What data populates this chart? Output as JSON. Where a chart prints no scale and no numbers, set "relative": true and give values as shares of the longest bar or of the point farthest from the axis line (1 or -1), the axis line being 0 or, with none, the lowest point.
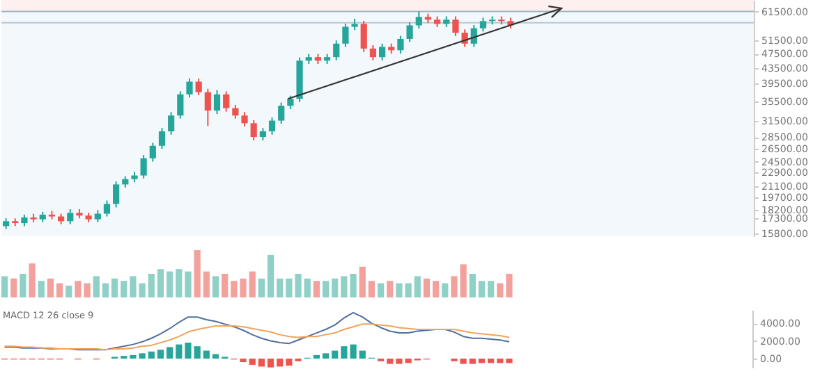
{
  "chart_data": [
    {
      "type": "candlestick",
      "tick_labels": "y",
      "log": "y",
      "ylim": [
        15500,
        66000
      ],
      "yticks": [
        {
          "value": 61500,
          "label": "61500.00"
        },
        {
          "value": 51500,
          "label": "51500.00"
        },
        {
          "value": 47500,
          "label": "47500.00"
        },
        {
          "value": 43500,
          "label": "43500.00"
        },
        {
          "value": 39500,
          "label": "39500.00"
        },
        {
          "value": 35500,
          "label": "35500.00"
        },
        {
          "value": 31500,
          "label": "31500.00"
        },
        {
          "value": 28500,
          "label": "28500.00"
        },
        {
          "value": 26500,
          "label": "26500.00"
        },
        {
          "value": 24500,
          "label": "24500.00"
        },
        {
          "value": 22900,
          "label": "22900.00"
        },
        {
          "value": 21100,
          "label": "21100.00"
        },
        {
          "value": 19700,
          "label": "19700.00"
        },
        {
          "value": 18200,
          "label": "18200.00"
        },
        {
          "value": 17300,
          "label": "17300.00"
        },
        {
          "value": 15800,
          "label": "15800.00"
        }
      ],
      "categories": [
        null,
        null,
        null,
        null,
        null,
        null,
        null,
        null,
        null,
        null,
        null,
        null,
        null,
        null,
        null,
        null,
        null,
        null,
        null,
        null,
        null,
        null,
        null,
        null,
        null,
        null,
        null,
        null,
        null,
        null,
        null,
        null,
        null,
        null,
        null,
        null,
        null,
        null,
        null,
        null,
        null,
        null,
        null,
        null,
        null,
        null,
        null,
        null,
        null,
        null,
        null,
        null,
        null,
        null,
        null,
        null,
        null,
        null,
        null,
        null,
        null,
        null,
        null,
        null,
        null,
        null,
        null,
        null,
        null,
        null,
        null,
        null,
        null,
        null,
        null,
        null,
        null,
        null,
        null,
        null,
        null,
        null
      ],
      "ohlc": [
        [
          16500,
          17300,
          16200,
          17000
        ],
        [
          17000,
          17300,
          16500,
          16800
        ],
        [
          16800,
          17700,
          16500,
          17400
        ],
        [
          17400,
          17800,
          16900,
          17200
        ],
        [
          17200,
          18000,
          16900,
          17700
        ],
        [
          17700,
          18100,
          17200,
          17500
        ],
        [
          17500,
          17800,
          16700,
          17000
        ],
        [
          17000,
          18300,
          16700,
          17900
        ],
        [
          17900,
          18300,
          17300,
          17600
        ],
        [
          17600,
          17900,
          16900,
          17200
        ],
        [
          17200,
          18200,
          16900,
          17800
        ],
        [
          17800,
          19300,
          17500,
          18900
        ],
        [
          18900,
          21700,
          18500,
          21300
        ],
        [
          21300,
          22400,
          20900,
          22000
        ],
        [
          22000,
          23000,
          21600,
          22500
        ],
        [
          22500,
          25500,
          22100,
          25000
        ],
        [
          25000,
          27500,
          24500,
          27000
        ],
        [
          27000,
          30100,
          26500,
          29500
        ],
        [
          29500,
          33200,
          28900,
          32500
        ],
        [
          32500,
          37700,
          31900,
          37000
        ],
        [
          37000,
          40800,
          36300,
          40000
        ],
        [
          40000,
          40800,
          36800,
          37500
        ],
        [
          37500,
          38300,
          30500,
          33500
        ],
        [
          33500,
          38000,
          32800,
          37000
        ],
        [
          37000,
          37700,
          33300,
          34000
        ],
        [
          34000,
          34700,
          31900,
          32500
        ],
        [
          32500,
          33200,
          30400,
          31000
        ],
        [
          31000,
          31600,
          27900,
          28500
        ],
        [
          28500,
          30100,
          27900,
          29500
        ],
        [
          29500,
          32100,
          28900,
          31500
        ],
        [
          31500,
          35200,
          30900,
          34500
        ],
        [
          34500,
          36700,
          33800,
          36000
        ],
        [
          36000,
          46400,
          35300,
          45500
        ],
        [
          45500,
          47400,
          44600,
          46500
        ],
        [
          46500,
          47400,
          44600,
          45500
        ],
        [
          45500,
          47400,
          44600,
          46500
        ],
        [
          46500,
          51500,
          45600,
          50500
        ],
        [
          50500,
          57100,
          49500,
          56000
        ],
        [
          56000,
          58800,
          54900,
          57000
        ],
        [
          57000,
          58100,
          48000,
          49000
        ],
        [
          49000,
          50000,
          45600,
          46500
        ],
        [
          46500,
          50500,
          45600,
          49500
        ],
        [
          49500,
          50500,
          47500,
          48500
        ],
        [
          48500,
          53000,
          47500,
          52000
        ],
        [
          52000,
          57600,
          51000,
          56500
        ],
        [
          56500,
          61500,
          55400,
          59500
        ],
        [
          59500,
          60700,
          57300,
          58500
        ],
        [
          58500,
          59700,
          55900,
          57000
        ],
        [
          57000,
          59700,
          55900,
          58500
        ],
        [
          58500,
          59700,
          52900,
          54000
        ],
        [
          54000,
          55100,
          49500,
          50500
        ],
        [
          50500,
          56600,
          49500,
          55500
        ],
        [
          55500,
          59200,
          54400,
          58000
        ],
        [
          58000,
          59700,
          56800,
          58500
        ],
        [
          58500,
          59700,
          56800,
          58000
        ],
        [
          58000,
          59200,
          55400,
          56500
        ],
        null,
        null,
        null,
        null,
        null,
        null,
        null,
        null,
        null,
        null,
        null,
        null,
        null,
        null,
        null,
        null,
        null,
        null,
        null,
        null,
        null,
        null,
        null,
        null,
        null,
        null
      ],
      "colors": [
        "#26a69a",
        "#ef5350",
        "#26a69a",
        "#ef5350",
        "#26a69a",
        "#ef5350",
        "#ef5350",
        "#26a69a",
        "#ef5350",
        "#ef5350",
        "#26a69a",
        "#26a69a",
        "#26a69a",
        "#26a69a",
        "#26a69a",
        "#26a69a",
        "#26a69a",
        "#26a69a",
        "#26a69a",
        "#26a69a",
        "#26a69a",
        "#ef5350",
        "#ef5350",
        "#26a69a",
        "#ef5350",
        "#ef5350",
        "#ef5350",
        "#ef5350",
        "#26a69a",
        "#26a69a",
        "#26a69a",
        "#26a69a",
        "#26a69a",
        "#26a69a",
        "#ef5350",
        "#26a69a",
        "#26a69a",
        "#26a69a",
        "#26a69a",
        "#ef5350",
        "#ef5350",
        "#26a69a",
        "#ef5350",
        "#26a69a",
        "#26a69a",
        "#26a69a",
        "#ef5350",
        "#ef5350",
        "#26a69a",
        "#ef5350",
        "#ef5350",
        "#26a69a",
        "#26a69a",
        "#26a69a",
        "#ef5350",
        "#ef5350",
        null,
        null,
        null,
        null,
        null,
        null,
        null,
        null,
        null,
        null,
        null,
        null,
        null,
        null,
        null,
        null,
        null,
        null,
        null,
        null,
        null,
        null,
        null,
        null,
        null,
        null
      ],
      "ref_lines": [
        {
          "axis": "y",
          "value": 61500,
          "color": "#9fb4c4"
        },
        {
          "axis": "y",
          "value": 57400,
          "color": "#b8c8d4"
        }
      ],
      "bands": [
        {
          "axis": "y",
          "from": 61500,
          "to": 66000,
          "color": "#fdf0ef"
        },
        {
          "axis": "y",
          "from": 15500,
          "to": 61500,
          "color": "#f2f8fc"
        }
      ]
    },
    {
      "type": "bar",
      "relative": true,
      "categories": [
        null,
        null,
        null,
        null,
        null,
        null,
        null,
        null,
        null,
        null,
        null,
        null,
        null,
        null,
        null,
        null,
        null,
        null,
        null,
        null,
        null,
        null,
        null,
        null,
        null,
        null,
        null,
        null,
        null,
        null,
        null,
        null,
        null,
        null,
        null,
        null,
        null,
        null,
        null,
        null,
        null,
        null,
        null,
        null,
        null,
        null,
        null,
        null,
        null,
        null,
        null,
        null,
        null,
        null,
        null,
        null,
        null,
        null,
        null,
        null,
        null,
        null,
        null,
        null,
        null,
        null,
        null,
        null,
        null,
        null,
        null,
        null,
        null,
        null,
        null,
        null,
        null,
        null,
        null,
        null,
        null,
        null
      ],
      "values": [
        0.45,
        0.4,
        0.5,
        0.72,
        0.35,
        0.4,
        0.3,
        0.25,
        0.35,
        0.3,
        0.45,
        0.3,
        0.4,
        0.35,
        0.45,
        0.3,
        0.5,
        0.6,
        0.55,
        0.6,
        0.55,
        1.0,
        0.55,
        0.45,
        0.5,
        0.35,
        0.4,
        0.55,
        0.4,
        0.9,
        0.4,
        0.4,
        0.5,
        0.4,
        0.35,
        0.35,
        0.4,
        0.45,
        0.5,
        0.65,
        0.35,
        0.3,
        0.35,
        0.3,
        0.3,
        0.45,
        0.4,
        0.35,
        0.3,
        0.45,
        0.7,
        0.5,
        0.35,
        0.35,
        0.3,
        0.5,
        null,
        null,
        null,
        null,
        null,
        null,
        null,
        null,
        null,
        null,
        null,
        null,
        null,
        null,
        null,
        null,
        null,
        null,
        null,
        null,
        null,
        null,
        null,
        null,
        null,
        null
      ],
      "colors": [
        "#8fd0c7",
        "#f2a19d",
        "#8fd0c7",
        "#f2a19d",
        "#8fd0c7",
        "#f2a19d",
        "#f2a19d",
        "#8fd0c7",
        "#f2a19d",
        "#f2a19d",
        "#8fd0c7",
        "#8fd0c7",
        "#8fd0c7",
        "#8fd0c7",
        "#8fd0c7",
        "#8fd0c7",
        "#8fd0c7",
        "#8fd0c7",
        "#8fd0c7",
        "#8fd0c7",
        "#8fd0c7",
        "#f2a19d",
        "#f2a19d",
        "#8fd0c7",
        "#f2a19d",
        "#f2a19d",
        "#f2a19d",
        "#f2a19d",
        "#8fd0c7",
        "#8fd0c7",
        "#8fd0c7",
        "#8fd0c7",
        "#8fd0c7",
        "#8fd0c7",
        "#f2a19d",
        "#8fd0c7",
        "#8fd0c7",
        "#8fd0c7",
        "#8fd0c7",
        "#f2a19d",
        "#f2a19d",
        "#8fd0c7",
        "#f2a19d",
        "#8fd0c7",
        "#8fd0c7",
        "#8fd0c7",
        "#f2a19d",
        "#f2a19d",
        "#8fd0c7",
        "#f2a19d",
        "#f2a19d",
        "#8fd0c7",
        "#8fd0c7",
        "#8fd0c7",
        "#f2a19d",
        "#f2a19d",
        null,
        null,
        null,
        null,
        null,
        null,
        null,
        null,
        null,
        null,
        null,
        null,
        null,
        null,
        null,
        null,
        null,
        null,
        null,
        null,
        null,
        null,
        null,
        null,
        null,
        null
      ]
    },
    {
      "type": "line",
      "tick_labels": "y",
      "ylim": [
        -1100,
        5500
      ],
      "yticks": [
        {
          "value": 0,
          "label": "0.00"
        },
        {
          "value": 2000,
          "label": "2000.00"
        },
        {
          "value": 4000,
          "label": "4000.00"
        }
      ],
      "annotations": [
        "MACD 12 26 close 9"
      ],
      "categories": [
        null,
        null,
        null,
        null,
        null,
        null,
        null,
        null,
        null,
        null,
        null,
        null,
        null,
        null,
        null,
        null,
        null,
        null,
        null,
        null,
        null,
        null,
        null,
        null,
        null,
        null,
        null,
        null,
        null,
        null,
        null,
        null,
        null,
        null,
        null,
        null,
        null,
        null,
        null,
        null,
        null,
        null,
        null,
        null,
        null,
        null,
        null,
        null,
        null,
        null,
        null,
        null,
        null,
        null,
        null,
        null,
        null,
        null,
        null,
        null,
        null,
        null,
        null,
        null,
        null,
        null,
        null,
        null,
        null,
        null,
        null,
        null,
        null,
        null,
        null,
        null,
        null,
        null,
        null,
        null,
        null,
        null
      ],
      "series": [
        {
          "type": "bar",
          "values": [
            -100,
            -100,
            -100,
            -100,
            -100,
            -100,
            -100,
            0,
            -100,
            0,
            -100,
            0,
            200,
            300,
            400,
            600,
            800,
            1000,
            1300,
            1600,
            1800,
            1400,
            900,
            500,
            200,
            -100,
            -400,
            -700,
            -900,
            -1000,
            -900,
            -800,
            -300,
            100,
            400,
            600,
            900,
            1400,
            1600,
            900,
            100,
            -300,
            -600,
            -600,
            -500,
            -200,
            -100,
            0,
            0,
            -300,
            -600,
            -600,
            -500,
            -500,
            -500,
            -500,
            null,
            null,
            null,
            null,
            null,
            null,
            null,
            null,
            null,
            null,
            null,
            null,
            null,
            null,
            null,
            null,
            null,
            null,
            null,
            null,
            null,
            null,
            null,
            null,
            null,
            null
          ],
          "colors": [
            "#ef5350",
            "#ef5350",
            "#ef5350",
            "#ef5350",
            "#ef5350",
            "#ef5350",
            "#ef5350",
            "#ef5350",
            "#ef5350",
            "#ef5350",
            "#ef5350",
            "#26a69a",
            "#26a69a",
            "#26a69a",
            "#26a69a",
            "#26a69a",
            "#26a69a",
            "#26a69a",
            "#26a69a",
            "#26a69a",
            "#26a69a",
            "#26a69a",
            "#26a69a",
            "#26a69a",
            "#26a69a",
            "#ef5350",
            "#ef5350",
            "#ef5350",
            "#ef5350",
            "#ef5350",
            "#ef5350",
            "#ef5350",
            "#ef5350",
            "#26a69a",
            "#26a69a",
            "#26a69a",
            "#26a69a",
            "#26a69a",
            "#26a69a",
            "#26a69a",
            "#26a69a",
            "#ef5350",
            "#ef5350",
            "#ef5350",
            "#ef5350",
            "#ef5350",
            "#ef5350",
            "#ef5350",
            "#ef5350",
            "#ef5350",
            "#ef5350",
            "#ef5350",
            "#ef5350",
            "#ef5350",
            "#ef5350",
            "#ef5350",
            null,
            null,
            null,
            null,
            null,
            null,
            null,
            null,
            null,
            null,
            null,
            null,
            null,
            null,
            null,
            null,
            null,
            null,
            null,
            null,
            null,
            null,
            null,
            null,
            null,
            null
          ]
        },
        {
          "type": "line",
          "color": "#4f6fa0",
          "values": [
            1300,
            1300,
            1200,
            1200,
            1200,
            1100,
            1100,
            1100,
            1000,
            1000,
            1000,
            1000,
            1200,
            1400,
            1600,
            1900,
            2300,
            2800,
            3400,
            4100,
            4700,
            4700,
            4400,
            4200,
            3900,
            3600,
            3200,
            2700,
            2300,
            2000,
            1800,
            1700,
            2100,
            2500,
            2900,
            3300,
            3800,
            4600,
            5200,
            4700,
            4000,
            3500,
            3100,
            2900,
            2900,
            3100,
            3200,
            3300,
            3300,
            3000,
            2500,
            2300,
            2300,
            2200,
            2100,
            1900,
            null,
            null,
            null,
            null,
            null,
            null,
            null,
            null,
            null,
            null,
            null,
            null,
            null,
            null,
            null,
            null,
            null,
            null,
            null,
            null,
            null,
            null,
            null,
            null,
            null,
            null
          ]
        },
        {
          "type": "line",
          "color": "#f0a35a",
          "values": [
            1400,
            1400,
            1300,
            1300,
            1200,
            1200,
            1100,
            1100,
            1100,
            1100,
            1100,
            1000,
            1100,
            1100,
            1200,
            1400,
            1500,
            1800,
            2100,
            2500,
            3000,
            3300,
            3500,
            3700,
            3700,
            3700,
            3600,
            3400,
            3200,
            3000,
            2700,
            2500,
            2400,
            2500,
            2500,
            2700,
            2900,
            3300,
            3600,
            3900,
            3900,
            3800,
            3700,
            3500,
            3400,
            3300,
            3300,
            3300,
            3300,
            3300,
            3100,
            2900,
            2800,
            2700,
            2600,
            2400,
            null,
            null,
            null,
            null,
            null,
            null,
            null,
            null,
            null,
            null,
            null,
            null,
            null,
            null,
            null,
            null,
            null,
            null,
            null,
            null,
            null,
            null,
            null,
            null,
            null,
            null
          ]
        }
      ]
    }
  ]
}
